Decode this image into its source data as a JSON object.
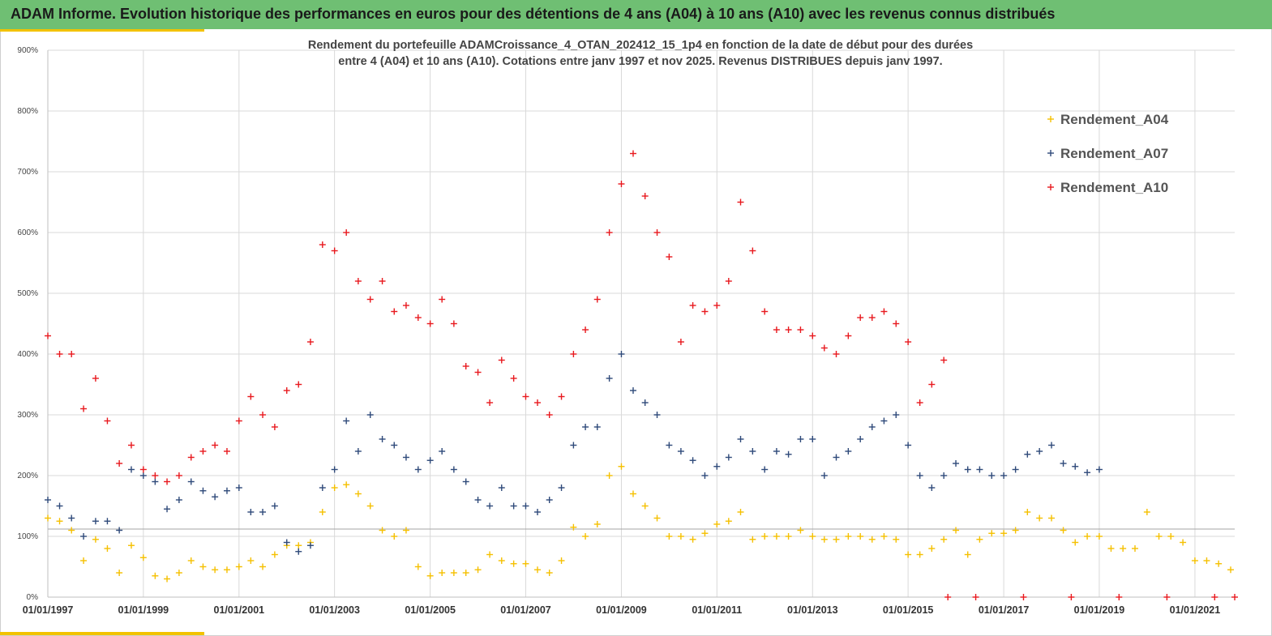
{
  "header": {
    "title": "ADAM Informe. Evolution historique des performances en euros pour des détentions de 4 ans (A04) à 10 ans (A10) avec les revenus connus distribués"
  },
  "chart_data": {
    "type": "scatter",
    "title": "",
    "subtitle_line1": "Rendement du portefeuille ADAMCroissance_4_OTAN_202412_15_1p4  en fonction de la date de début pour des durées",
    "subtitle_line2": "entre 4 (A04) et 10 ans (A10). Cotations entre janv 1997 et nov 2025. Revenus DISTRIBUES depuis janv 1997.",
    "xlabel": "",
    "ylabel": "",
    "xlim": [
      "1997-01-01",
      "2021-11-01"
    ],
    "ylim": [
      0,
      900
    ],
    "y_ticks": [
      "0%",
      "100%",
      "200%",
      "300%",
      "400%",
      "500%",
      "600%",
      "700%",
      "800%",
      "900%"
    ],
    "x_ticks": [
      "01/01/1997",
      "01/01/1999",
      "01/01/2001",
      "01/01/2003",
      "01/01/2005",
      "01/01/2007",
      "01/01/2009",
      "01/01/2011",
      "01/01/2013",
      "01/01/2015",
      "01/01/2017",
      "01/01/2019",
      "01/01/2021"
    ],
    "reference_line_y": 112,
    "grid": true,
    "legend_position": "top-right",
    "marker": "+",
    "series": [
      {
        "name": "Rendement_A04",
        "color": "#f5c000",
        "points": [
          [
            "1997-01-01",
            130
          ],
          [
            "1997-04-01",
            125
          ],
          [
            "1997-07-01",
            110
          ],
          [
            "1997-10-01",
            60
          ],
          [
            "1998-01-01",
            95
          ],
          [
            "1998-04-01",
            80
          ],
          [
            "1998-07-01",
            40
          ],
          [
            "1998-10-01",
            85
          ],
          [
            "1999-01-01",
            65
          ],
          [
            "1999-04-01",
            35
          ],
          [
            "1999-07-01",
            30
          ],
          [
            "1999-10-01",
            40
          ],
          [
            "2000-01-01",
            60
          ],
          [
            "2000-04-01",
            50
          ],
          [
            "2000-07-01",
            45
          ],
          [
            "2000-10-01",
            45
          ],
          [
            "2001-01-01",
            50
          ],
          [
            "2001-04-01",
            60
          ],
          [
            "2001-07-01",
            50
          ],
          [
            "2001-10-01",
            70
          ],
          [
            "2002-01-01",
            85
          ],
          [
            "2002-04-01",
            85
          ],
          [
            "2002-07-01",
            90
          ],
          [
            "2002-10-01",
            140
          ],
          [
            "2003-01-01",
            180
          ],
          [
            "2003-04-01",
            185
          ],
          [
            "2003-07-01",
            170
          ],
          [
            "2003-10-01",
            150
          ],
          [
            "2004-01-01",
            110
          ],
          [
            "2004-04-01",
            100
          ],
          [
            "2004-07-01",
            110
          ],
          [
            "2004-10-01",
            50
          ],
          [
            "2005-01-01",
            35
          ],
          [
            "2005-04-01",
            40
          ],
          [
            "2005-07-01",
            40
          ],
          [
            "2005-10-01",
            40
          ],
          [
            "2006-01-01",
            45
          ],
          [
            "2006-04-01",
            70
          ],
          [
            "2006-07-01",
            60
          ],
          [
            "2006-10-01",
            55
          ],
          [
            "2007-01-01",
            55
          ],
          [
            "2007-04-01",
            45
          ],
          [
            "2007-07-01",
            40
          ],
          [
            "2007-10-01",
            60
          ],
          [
            "2008-01-01",
            115
          ],
          [
            "2008-04-01",
            100
          ],
          [
            "2008-07-01",
            120
          ],
          [
            "2008-10-01",
            200
          ],
          [
            "2009-01-01",
            215
          ],
          [
            "2009-04-01",
            170
          ],
          [
            "2009-07-01",
            150
          ],
          [
            "2009-10-01",
            130
          ],
          [
            "2010-01-01",
            100
          ],
          [
            "2010-04-01",
            100
          ],
          [
            "2010-07-01",
            95
          ],
          [
            "2010-10-01",
            105
          ],
          [
            "2011-01-01",
            120
          ],
          [
            "2011-04-01",
            125
          ],
          [
            "2011-07-01",
            140
          ],
          [
            "2011-10-01",
            95
          ],
          [
            "2012-01-01",
            100
          ],
          [
            "2012-04-01",
            100
          ],
          [
            "2012-07-01",
            100
          ],
          [
            "2012-10-01",
            110
          ],
          [
            "2013-01-01",
            100
          ],
          [
            "2013-04-01",
            95
          ],
          [
            "2013-07-01",
            95
          ],
          [
            "2013-10-01",
            100
          ],
          [
            "2014-01-01",
            100
          ],
          [
            "2014-04-01",
            95
          ],
          [
            "2014-07-01",
            100
          ],
          [
            "2014-10-01",
            95
          ],
          [
            "2015-01-01",
            70
          ],
          [
            "2015-04-01",
            70
          ],
          [
            "2015-07-01",
            80
          ],
          [
            "2015-10-01",
            95
          ],
          [
            "2016-01-01",
            110
          ],
          [
            "2016-04-01",
            70
          ],
          [
            "2016-07-01",
            95
          ],
          [
            "2016-10-01",
            105
          ],
          [
            "2017-01-01",
            105
          ],
          [
            "2017-04-01",
            110
          ],
          [
            "2017-07-01",
            140
          ],
          [
            "2017-10-01",
            130
          ],
          [
            "2018-01-01",
            130
          ],
          [
            "2018-04-01",
            110
          ],
          [
            "2018-07-01",
            90
          ],
          [
            "2018-10-01",
            100
          ],
          [
            "2019-01-01",
            100
          ],
          [
            "2019-04-01",
            80
          ],
          [
            "2019-07-01",
            80
          ],
          [
            "2019-10-01",
            80
          ],
          [
            "2020-01-01",
            140
          ],
          [
            "2020-04-01",
            100
          ],
          [
            "2020-07-01",
            100
          ],
          [
            "2020-10-01",
            90
          ],
          [
            "2021-01-01",
            60
          ],
          [
            "2021-04-01",
            60
          ],
          [
            "2021-07-01",
            55
          ],
          [
            "2021-10-01",
            45
          ]
        ]
      },
      {
        "name": "Rendement_A07",
        "color": "#2f4a7a",
        "points": [
          [
            "1997-01-01",
            160
          ],
          [
            "1997-04-01",
            150
          ],
          [
            "1997-07-01",
            130
          ],
          [
            "1997-10-01",
            100
          ],
          [
            "1998-01-01",
            125
          ],
          [
            "1998-04-01",
            125
          ],
          [
            "1998-07-01",
            110
          ],
          [
            "1998-10-01",
            210
          ],
          [
            "1999-01-01",
            200
          ],
          [
            "1999-04-01",
            190
          ],
          [
            "1999-07-01",
            145
          ],
          [
            "1999-10-01",
            160
          ],
          [
            "2000-01-01",
            190
          ],
          [
            "2000-04-01",
            175
          ],
          [
            "2000-07-01",
            165
          ],
          [
            "2000-10-01",
            175
          ],
          [
            "2001-01-01",
            180
          ],
          [
            "2001-04-01",
            140
          ],
          [
            "2001-07-01",
            140
          ],
          [
            "2001-10-01",
            150
          ],
          [
            "2002-01-01",
            90
          ],
          [
            "2002-04-01",
            75
          ],
          [
            "2002-07-01",
            85
          ],
          [
            "2002-10-01",
            180
          ],
          [
            "2003-01-01",
            210
          ],
          [
            "2003-04-01",
            290
          ],
          [
            "2003-07-01",
            240
          ],
          [
            "2003-10-01",
            300
          ],
          [
            "2004-01-01",
            260
          ],
          [
            "2004-04-01",
            250
          ],
          [
            "2004-07-01",
            230
          ],
          [
            "2004-10-01",
            210
          ],
          [
            "2005-01-01",
            225
          ],
          [
            "2005-04-01",
            240
          ],
          [
            "2005-07-01",
            210
          ],
          [
            "2005-10-01",
            190
          ],
          [
            "2006-01-01",
            160
          ],
          [
            "2006-04-01",
            150
          ],
          [
            "2006-07-01",
            180
          ],
          [
            "2006-10-01",
            150
          ],
          [
            "2007-01-01",
            150
          ],
          [
            "2007-04-01",
            140
          ],
          [
            "2007-07-01",
            160
          ],
          [
            "2007-10-01",
            180
          ],
          [
            "2008-01-01",
            250
          ],
          [
            "2008-04-01",
            280
          ],
          [
            "2008-07-01",
            280
          ],
          [
            "2008-10-01",
            360
          ],
          [
            "2009-01-01",
            400
          ],
          [
            "2009-04-01",
            340
          ],
          [
            "2009-07-01",
            320
          ],
          [
            "2009-10-01",
            300
          ],
          [
            "2010-01-01",
            250
          ],
          [
            "2010-04-01",
            240
          ],
          [
            "2010-07-01",
            225
          ],
          [
            "2010-10-01",
            200
          ],
          [
            "2011-01-01",
            215
          ],
          [
            "2011-04-01",
            230
          ],
          [
            "2011-07-01",
            260
          ],
          [
            "2011-10-01",
            240
          ],
          [
            "2012-01-01",
            210
          ],
          [
            "2012-04-01",
            240
          ],
          [
            "2012-07-01",
            235
          ],
          [
            "2012-10-01",
            260
          ],
          [
            "2013-01-01",
            260
          ],
          [
            "2013-04-01",
            200
          ],
          [
            "2013-07-01",
            230
          ],
          [
            "2013-10-01",
            240
          ],
          [
            "2014-01-01",
            260
          ],
          [
            "2014-04-01",
            280
          ],
          [
            "2014-07-01",
            290
          ],
          [
            "2014-10-01",
            300
          ],
          [
            "2015-01-01",
            250
          ],
          [
            "2015-04-01",
            200
          ],
          [
            "2015-07-01",
            180
          ],
          [
            "2015-10-01",
            200
          ],
          [
            "2016-01-01",
            220
          ],
          [
            "2016-04-01",
            210
          ],
          [
            "2016-07-01",
            210
          ],
          [
            "2016-10-01",
            200
          ],
          [
            "2017-01-01",
            200
          ],
          [
            "2017-04-01",
            210
          ],
          [
            "2017-07-01",
            235
          ],
          [
            "2017-10-01",
            240
          ],
          [
            "2018-01-01",
            250
          ],
          [
            "2018-04-01",
            220
          ],
          [
            "2018-07-01",
            215
          ],
          [
            "2018-10-01",
            205
          ],
          [
            "2019-01-01",
            210
          ]
        ]
      },
      {
        "name": "Rendement_A10",
        "color": "#e8191e",
        "points": [
          [
            "1997-01-01",
            430
          ],
          [
            "1997-04-01",
            400
          ],
          [
            "1997-07-01",
            400
          ],
          [
            "1997-10-01",
            310
          ],
          [
            "1998-01-01",
            360
          ],
          [
            "1998-04-01",
            290
          ],
          [
            "1998-07-01",
            220
          ],
          [
            "1998-10-01",
            250
          ],
          [
            "1999-01-01",
            210
          ],
          [
            "1999-04-01",
            200
          ],
          [
            "1999-07-01",
            190
          ],
          [
            "1999-10-01",
            200
          ],
          [
            "2000-01-01",
            230
          ],
          [
            "2000-04-01",
            240
          ],
          [
            "2000-07-01",
            250
          ],
          [
            "2000-10-01",
            240
          ],
          [
            "2001-01-01",
            290
          ],
          [
            "2001-04-01",
            330
          ],
          [
            "2001-07-01",
            300
          ],
          [
            "2001-10-01",
            280
          ],
          [
            "2002-01-01",
            340
          ],
          [
            "2002-04-01",
            350
          ],
          [
            "2002-07-01",
            420
          ],
          [
            "2002-10-01",
            580
          ],
          [
            "2003-01-01",
            570
          ],
          [
            "2003-04-01",
            600
          ],
          [
            "2003-07-01",
            520
          ],
          [
            "2003-10-01",
            490
          ],
          [
            "2004-01-01",
            520
          ],
          [
            "2004-04-01",
            470
          ],
          [
            "2004-07-01",
            480
          ],
          [
            "2004-10-01",
            460
          ],
          [
            "2005-01-01",
            450
          ],
          [
            "2005-04-01",
            490
          ],
          [
            "2005-07-01",
            450
          ],
          [
            "2005-10-01",
            380
          ],
          [
            "2006-01-01",
            370
          ],
          [
            "2006-04-01",
            320
          ],
          [
            "2006-07-01",
            390
          ],
          [
            "2006-10-01",
            360
          ],
          [
            "2007-01-01",
            330
          ],
          [
            "2007-04-01",
            320
          ],
          [
            "2007-07-01",
            300
          ],
          [
            "2007-10-01",
            330
          ],
          [
            "2008-01-01",
            400
          ],
          [
            "2008-04-01",
            440
          ],
          [
            "2008-07-01",
            490
          ],
          [
            "2008-10-01",
            600
          ],
          [
            "2009-01-01",
            680
          ],
          [
            "2009-04-01",
            730
          ],
          [
            "2009-07-01",
            660
          ],
          [
            "2009-10-01",
            600
          ],
          [
            "2010-01-01",
            560
          ],
          [
            "2010-04-01",
            420
          ],
          [
            "2010-07-01",
            480
          ],
          [
            "2010-10-01",
            470
          ],
          [
            "2011-01-01",
            480
          ],
          [
            "2011-04-01",
            520
          ],
          [
            "2011-07-01",
            650
          ],
          [
            "2011-10-01",
            570
          ],
          [
            "2012-01-01",
            470
          ],
          [
            "2012-04-01",
            440
          ],
          [
            "2012-07-01",
            440
          ],
          [
            "2012-10-01",
            440
          ],
          [
            "2013-01-01",
            430
          ],
          [
            "2013-04-01",
            410
          ],
          [
            "2013-07-01",
            400
          ],
          [
            "2013-10-01",
            430
          ],
          [
            "2014-01-01",
            460
          ],
          [
            "2014-04-01",
            460
          ],
          [
            "2014-07-01",
            470
          ],
          [
            "2014-10-01",
            450
          ],
          [
            "2015-01-01",
            420
          ],
          [
            "2015-04-01",
            320
          ],
          [
            "2015-07-01",
            350
          ],
          [
            "2015-10-01",
            390
          ],
          [
            "2015-11-01",
            0
          ],
          [
            "2016-06-01",
            0
          ],
          [
            "2017-06-01",
            0
          ],
          [
            "2018-06-01",
            0
          ],
          [
            "2019-06-01",
            0
          ],
          [
            "2020-06-01",
            0
          ],
          [
            "2021-06-01",
            0
          ],
          [
            "2021-11-01",
            0
          ]
        ]
      }
    ]
  }
}
